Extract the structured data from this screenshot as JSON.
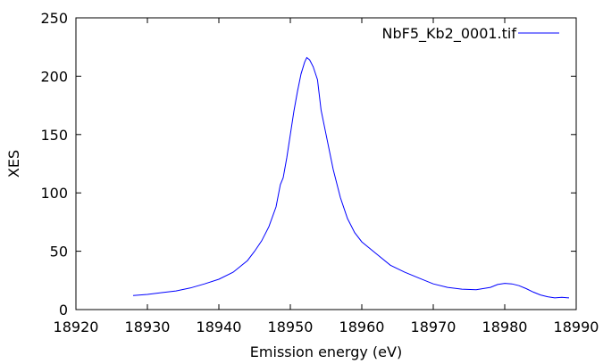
{
  "chart_data": {
    "type": "line",
    "title": "",
    "xlabel": "Emission energy (eV)",
    "ylabel": "XES",
    "xlim": [
      18920,
      18990
    ],
    "ylim": [
      0,
      250
    ],
    "xticks": [
      18920,
      18930,
      18940,
      18950,
      18960,
      18970,
      18980,
      18990
    ],
    "yticks": [
      0,
      50,
      100,
      150,
      200,
      250
    ],
    "grid": false,
    "legend_position": "top-right",
    "series": [
      {
        "name": "NbF5_Kb2_0001.tif",
        "color": "#0000ff",
        "x": [
          18928,
          18930,
          18932,
          18934,
          18936,
          18938,
          18940,
          18942,
          18944,
          18945,
          18946,
          18947,
          18948,
          18948.6,
          18949,
          18949.5,
          18950,
          18950.5,
          18951,
          18951.5,
          18952,
          18952.3,
          18952.7,
          18953.2,
          18953.8,
          18954.3,
          18955,
          18956,
          18957,
          18958,
          18959,
          18960,
          18962,
          18964,
          18966,
          18968,
          18970,
          18972,
          18974,
          18976,
          18978,
          18979,
          18980,
          18981,
          18982,
          18983,
          18984,
          18985,
          18986,
          18987,
          18988,
          18989
        ],
        "y": [
          12,
          13,
          14.5,
          16,
          18.5,
          22,
          26,
          32,
          42,
          50,
          59,
          71,
          88,
          107,
          113,
          130,
          150,
          170,
          187,
          202,
          212,
          216,
          214,
          208,
          197,
          171,
          150,
          120,
          96,
          78,
          66,
          58,
          48,
          38,
          32,
          27,
          22,
          19,
          17.5,
          17,
          19,
          21.5,
          22.5,
          22,
          20.5,
          18,
          15,
          12.5,
          11,
          10,
          10.5,
          10
        ]
      }
    ]
  }
}
